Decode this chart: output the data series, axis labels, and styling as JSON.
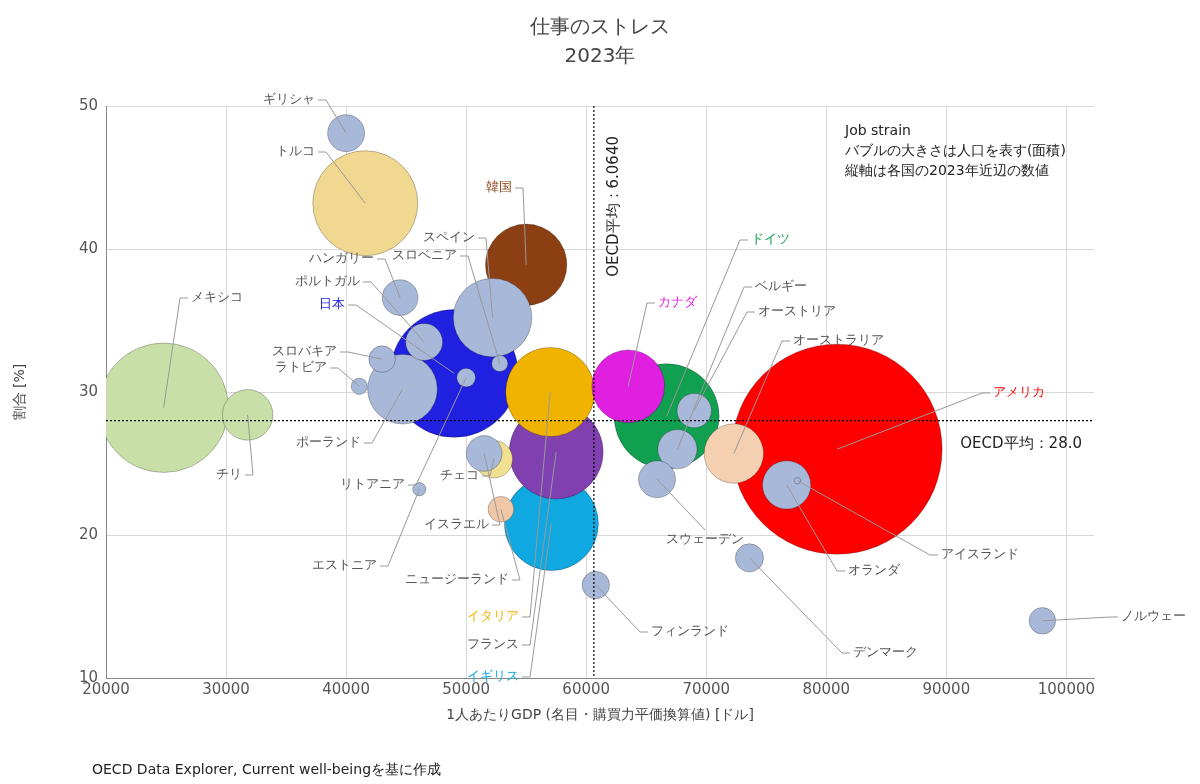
{
  "chart_data": {
    "type": "bubble",
    "title": "仕事のストレス",
    "subtitle": "2023年",
    "xlabel": "1人あたりGDP (名目・購買力平価換算値) [ドル]",
    "ylabel": "割合 [%]",
    "xlim": [
      20000,
      102300
    ],
    "xticks": [
      20000,
      30000,
      40000,
      50000,
      60000,
      70000,
      80000,
      90000,
      100000
    ],
    "ylim": [
      10,
      50
    ],
    "yticks": [
      10,
      20,
      30,
      40,
      50
    ],
    "grid": true,
    "legend": false,
    "ref_lines": [
      {
        "axis": "x",
        "value": 60640,
        "label": "OECD平均：6.0640",
        "line_style": "dotted",
        "color": "#000000"
      },
      {
        "axis": "y",
        "value": 28.0,
        "label": "OECD平均：28.0",
        "line_style": "dotted",
        "color": "#000000"
      }
    ],
    "annotations": [
      "Job strain",
      "バブルの大きさは人口を表す(面積)",
      "縦軸は各国の2023年近辺の数値",
      "OECD Data Explorer, Current well-beingを基に作成"
    ],
    "series": [
      {
        "name": "ギリシャ",
        "color": "#a8b8d8",
        "x": [
          40000
        ],
        "values": [
          48.1
        ],
        "sizes": [
          0.031
        ]
      },
      {
        "name": "トルコ",
        "color": "#f0d890",
        "x": [
          41600
        ],
        "values": [
          43.2
        ],
        "sizes": [
          0.25
        ]
      },
      {
        "name": "韓国",
        "color": "#8b3f12",
        "x": [
          55000
        ],
        "values": [
          38.9
        ],
        "sizes": [
          0.15
        ]
      },
      {
        "name": "スペイン",
        "color": "#a8b8d8",
        "x": [
          52200
        ],
        "values": [
          35.2
        ],
        "sizes": [
          0.14
        ]
      },
      {
        "name": "ハンガリー",
        "color": "#a8b8d8",
        "x": [
          44500
        ],
        "values": [
          36.6
        ],
        "sizes": [
          0.029
        ]
      },
      {
        "name": "スロベニア",
        "color": "#a8b8d8",
        "x": [
          52800
        ],
        "values": [
          32.0
        ],
        "sizes": [
          0.006
        ]
      },
      {
        "name": "ポルトガル",
        "color": "#a8b8d8",
        "x": [
          46500
        ],
        "values": [
          33.5
        ],
        "sizes": [
          0.031
        ]
      },
      {
        "name": "日本",
        "color": "#2020e0",
        "x": [
          49000
        ],
        "values": [
          31.3
        ],
        "sizes": [
          0.37
        ]
      },
      {
        "name": "スロバキア",
        "color": "#a8b8d8",
        "x": [
          43000
        ],
        "values": [
          32.3
        ],
        "sizes": [
          0.016
        ]
      },
      {
        "name": "ラトビア",
        "color": "#a8b8d8",
        "x": [
          41100
        ],
        "values": [
          30.4
        ],
        "sizes": [
          0.006
        ]
      },
      {
        "name": "ポーランド",
        "color": "#a8b8d8",
        "x": [
          44700
        ],
        "values": [
          30.2
        ],
        "sizes": [
          0.11
        ]
      },
      {
        "name": "リトアニア",
        "color": "#a8b8d8",
        "x": [
          50000
        ],
        "values": [
          31.0
        ],
        "sizes": [
          0.008
        ]
      },
      {
        "name": "メキシコ",
        "color": "#c8e0a8",
        "x": [
          24800
        ],
        "values": [
          28.9
        ],
        "sizes": [
          0.38
        ]
      },
      {
        "name": "チリ",
        "color": "#c8e0a8",
        "x": [
          31800
        ],
        "values": [
          28.4
        ],
        "sizes": [
          0.058
        ]
      },
      {
        "name": "チェコ",
        "color": "#f0e090",
        "x": [
          52300
        ],
        "values": [
          25.3
        ],
        "sizes": [
          0.032
        ]
      },
      {
        "name": "イスラエル",
        "color": "#a8b8d8",
        "x": [
          51500
        ],
        "values": [
          25.7
        ],
        "sizes": [
          0.029
        ]
      },
      {
        "name": "ニュージーランド",
        "color": "#f0c8a8",
        "x": [
          52900
        ],
        "values": [
          21.8
        ],
        "sizes": [
          0.015
        ]
      },
      {
        "name": "エストニア",
        "color": "#a8b8d8",
        "x": [
          46100
        ],
        "values": [
          23.2
        ],
        "sizes": [
          0.004
        ]
      },
      {
        "name": "イタリア",
        "color": "#f0b400",
        "x": [
          57000
        ],
        "values": [
          30.0
        ],
        "sizes": [
          0.18
        ]
      },
      {
        "name": "フランス",
        "color": "#8040b0",
        "x": [
          57500
        ],
        "values": [
          25.8
        ],
        "sizes": [
          0.2
        ]
      },
      {
        "name": "イギリス",
        "color": "#10a8e0",
        "x": [
          57100
        ],
        "values": [
          20.8
        ],
        "sizes": [
          0.2
        ]
      },
      {
        "name": "フィンランド",
        "color": "#a8b8d8",
        "x": [
          60800
        ],
        "values": [
          16.5
        ],
        "sizes": [
          0.017
        ]
      },
      {
        "name": "カナダ",
        "color": "#e020e0",
        "x": [
          63500
        ],
        "values": [
          30.4
        ],
        "sizes": [
          0.12
        ]
      },
      {
        "name": "ドイツ",
        "color": "#10a050",
        "x": [
          66700
        ],
        "values": [
          28.3
        ],
        "sizes": [
          0.25
        ]
      },
      {
        "name": "ベルギー",
        "color": "#a8b8d8",
        "x": [
          67600
        ],
        "values": [
          26.0
        ],
        "sizes": [
          0.035
        ]
      },
      {
        "name": "オーストリア",
        "color": "#a8b8d8",
        "x": [
          69000
        ],
        "values": [
          28.7
        ],
        "sizes": [
          0.027
        ]
      },
      {
        "name": "オーストラリア",
        "color": "#f5d0b0",
        "x": [
          72300
        ],
        "values": [
          25.7
        ],
        "sizes": [
          0.08
        ]
      },
      {
        "name": "アメリカ",
        "color": "#ff0000",
        "x": [
          80900
        ],
        "values": [
          26.0
        ],
        "sizes": [
          1
        ]
      },
      {
        "name": "スウェーデン",
        "color": "#a8b8d8",
        "x": [
          65900
        ],
        "values": [
          23.9
        ],
        "sizes": [
          0.031
        ]
      },
      {
        "name": "オランダ",
        "color": "#a8b8d8",
        "x": [
          76700
        ],
        "values": [
          23.5
        ],
        "sizes": [
          0.053
        ]
      },
      {
        "name": "アイスランド",
        "color": "#a8b8d8",
        "x": [
          77600
        ],
        "values": [
          23.8
        ],
        "sizes": [
          0.001
        ]
      },
      {
        "name": "デンマーク",
        "color": "#a8b8d8",
        "x": [
          73600
        ],
        "values": [
          18.4
        ],
        "sizes": [
          0.018
        ]
      },
      {
        "name": "ノルウェー",
        "color": "#a8b8d8",
        "x": [
          98000
        ],
        "values": [
          14.0
        ],
        "sizes": [
          0.016
        ]
      }
    ]
  }
}
